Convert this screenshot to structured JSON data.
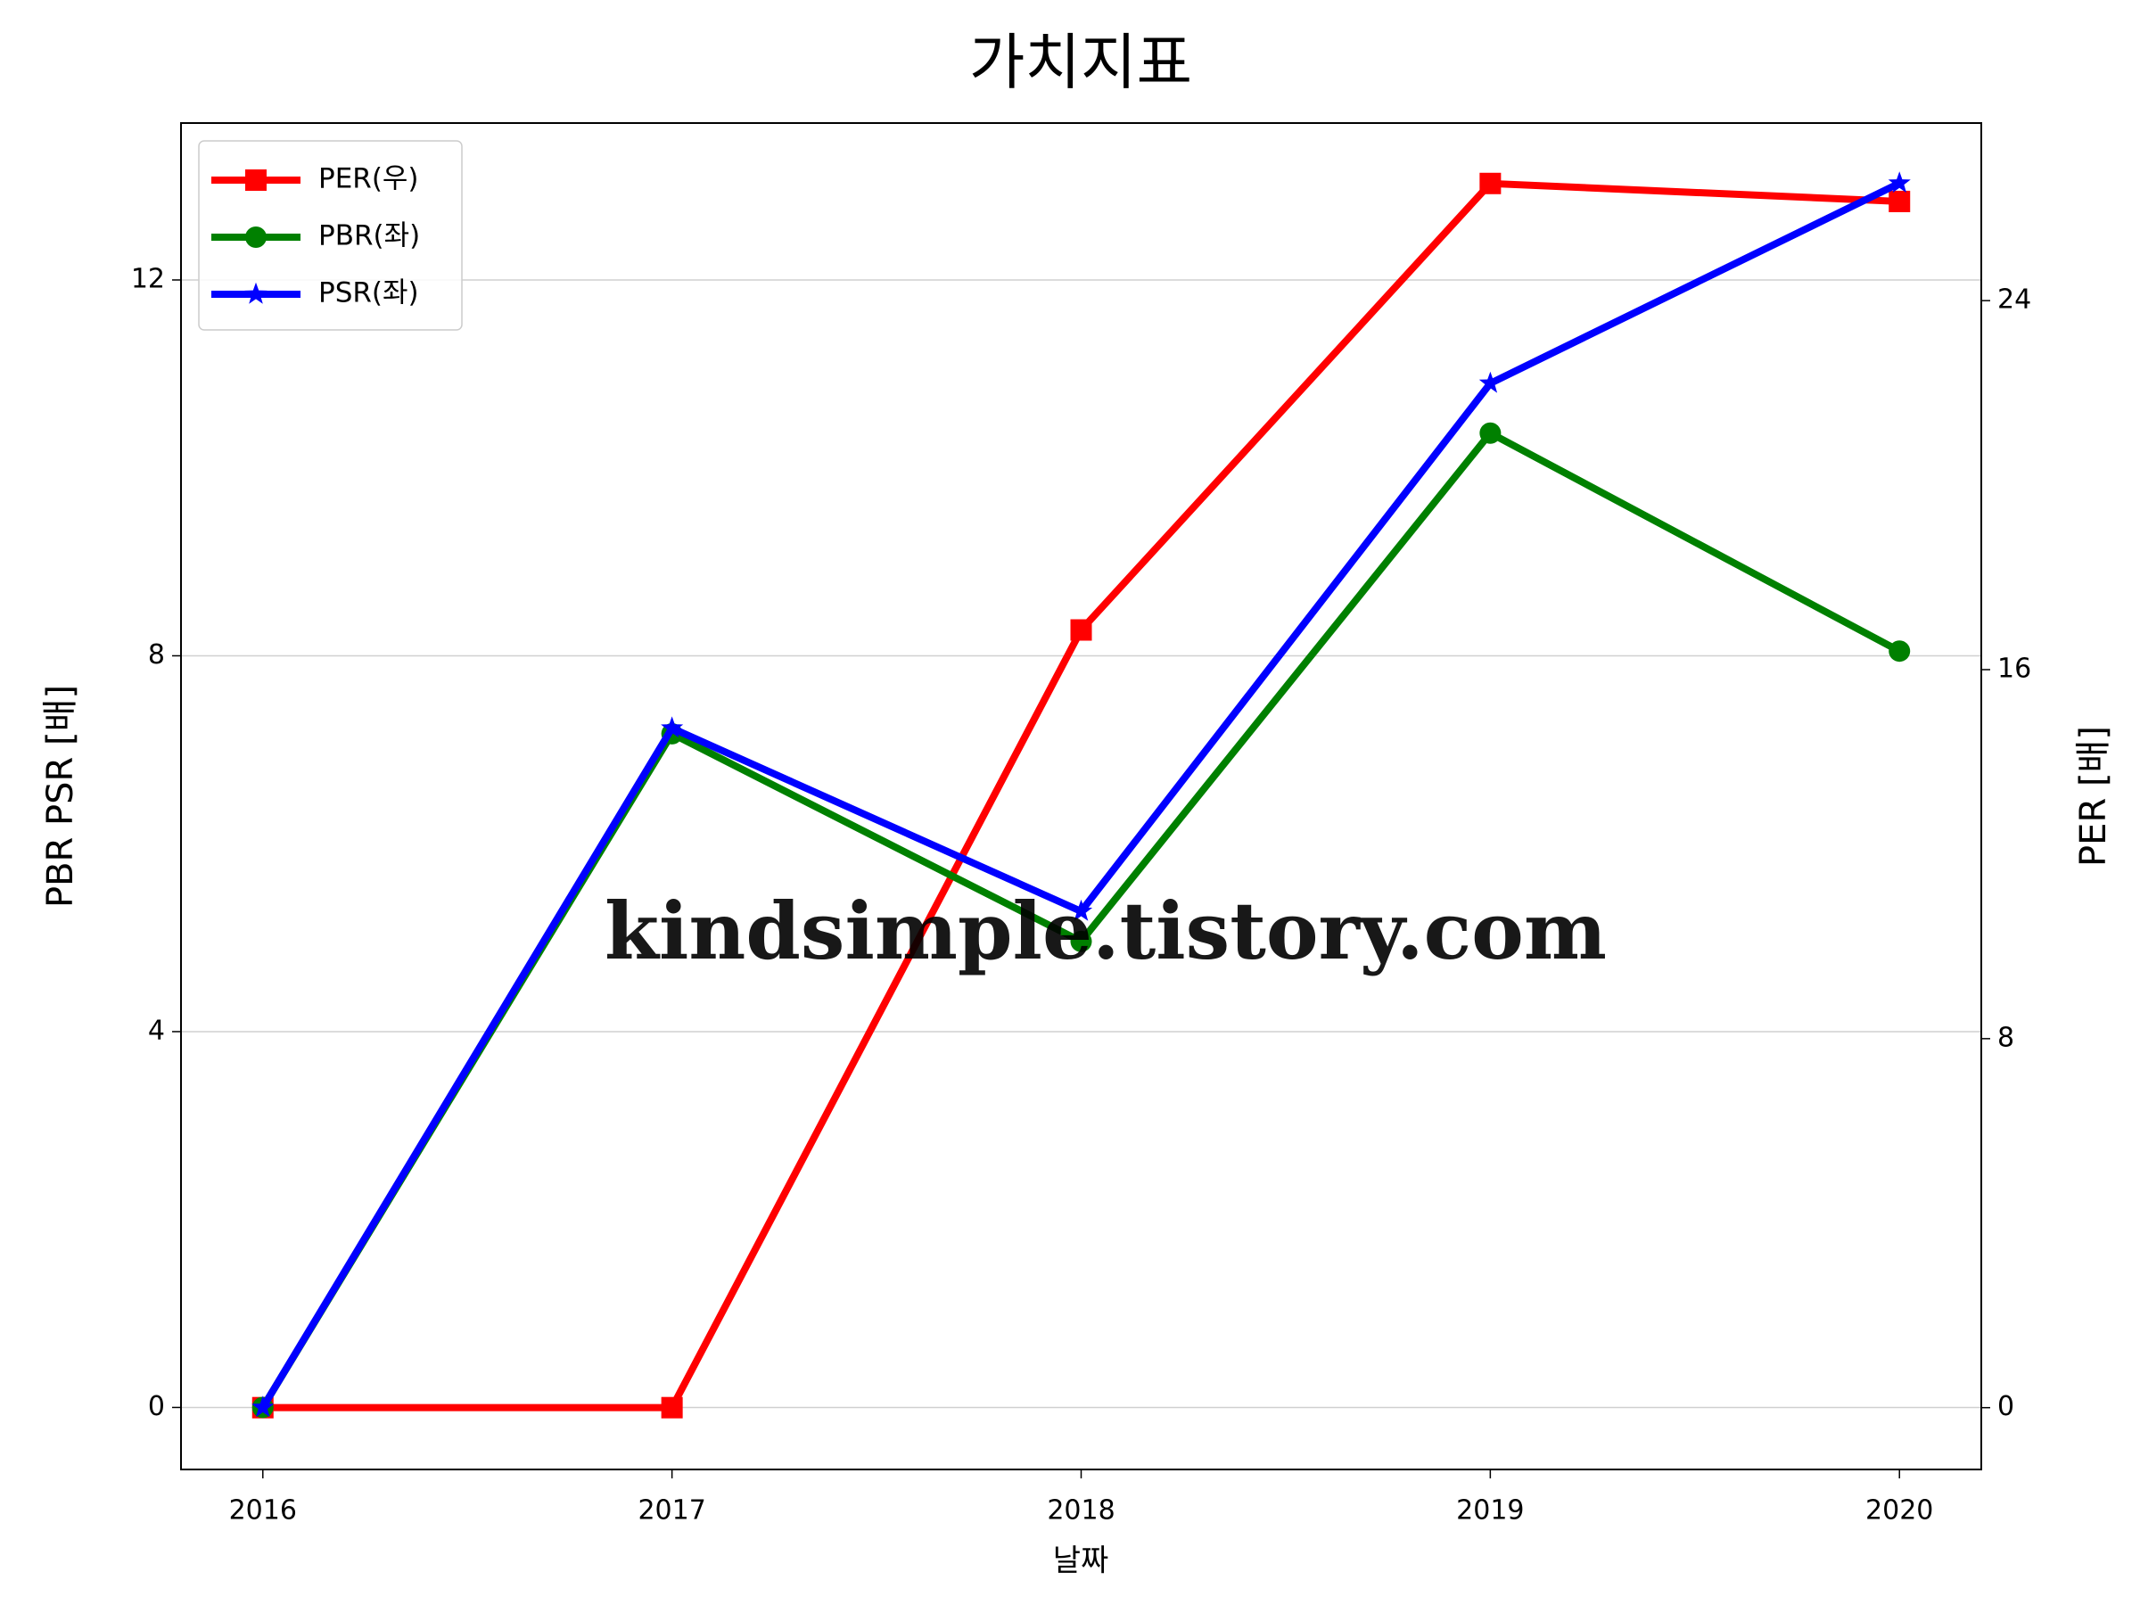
{
  "chart_data": {
    "type": "line",
    "title": "가치지표",
    "xlabel": "날짜",
    "ylabel": "PBR PSR [배]",
    "y2label": "PER [배]",
    "ylabel_color": "#008000",
    "y2label_color": "#ff0000",
    "watermark": "kindsimple.tistory.com",
    "x": [
      2016,
      2017,
      2018,
      2019,
      2020
    ],
    "xlim": [
      2015.8,
      2020.2
    ],
    "xticks": [
      2016,
      2017,
      2018,
      2019,
      2020
    ],
    "ylim": [
      -0.66,
      13.67
    ],
    "yticks": [
      0,
      4,
      8,
      12
    ],
    "y2lim": [
      -1.34,
      27.85
    ],
    "y2ticks": [
      0,
      8,
      16,
      24
    ],
    "grid": true,
    "legend": "upper left",
    "series": [
      {
        "name": "PER(우)",
        "color": "#ff0000",
        "marker": "square",
        "axis": "y2",
        "values": [
          0,
          0,
          16.86,
          26.54,
          26.15
        ]
      },
      {
        "name": "PBR(좌)",
        "color": "#008000",
        "marker": "circle",
        "values": [
          0,
          7.17,
          4.96,
          10.37,
          8.05
        ]
      },
      {
        "name": "PSR(좌)",
        "color": "#0000ff",
        "marker": "star",
        "values": [
          0,
          7.23,
          5.28,
          10.9,
          13.03
        ]
      }
    ]
  }
}
